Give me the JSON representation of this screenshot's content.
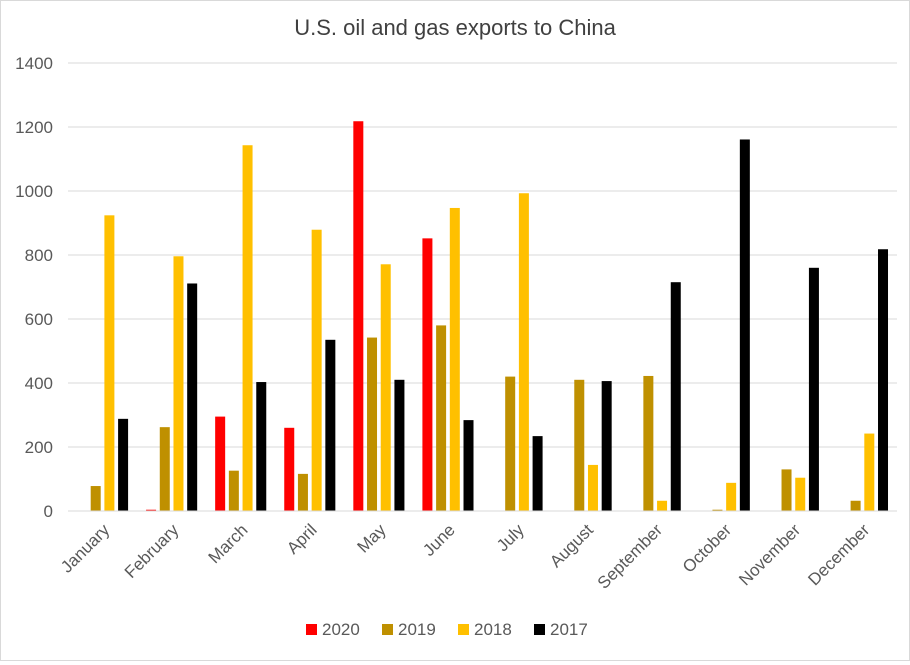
{
  "chart_data": {
    "type": "bar",
    "title": "U.S. oil and gas exports to China",
    "xlabel": "",
    "ylabel": "",
    "ylim": [
      0,
      1400
    ],
    "yticks": [
      0,
      200,
      400,
      600,
      800,
      1000,
      1200,
      1400
    ],
    "grid": true,
    "legend_position": "bottom",
    "categories": [
      "January",
      "February",
      "March",
      "April",
      "May",
      "June",
      "July",
      "August",
      "September",
      "October",
      "November",
      "December"
    ],
    "series": [
      {
        "name": "2020",
        "color": "#ff0000",
        "values": [
          0,
          4,
          295,
          260,
          1218,
          852,
          0,
          0,
          0,
          0,
          0,
          0
        ]
      },
      {
        "name": "2019",
        "color": "#bf9000",
        "values": [
          78,
          262,
          126,
          116,
          542,
          580,
          420,
          410,
          422,
          4,
          130,
          32
        ]
      },
      {
        "name": "2018",
        "color": "#ffc000",
        "values": [
          924,
          796,
          1143,
          879,
          771,
          947,
          993,
          144,
          32,
          88,
          104,
          242
        ]
      },
      {
        "name": "2017",
        "color": "#000000",
        "values": [
          288,
          711,
          403,
          535,
          410,
          284,
          234,
          406,
          715,
          1161,
          760,
          818
        ]
      }
    ]
  }
}
